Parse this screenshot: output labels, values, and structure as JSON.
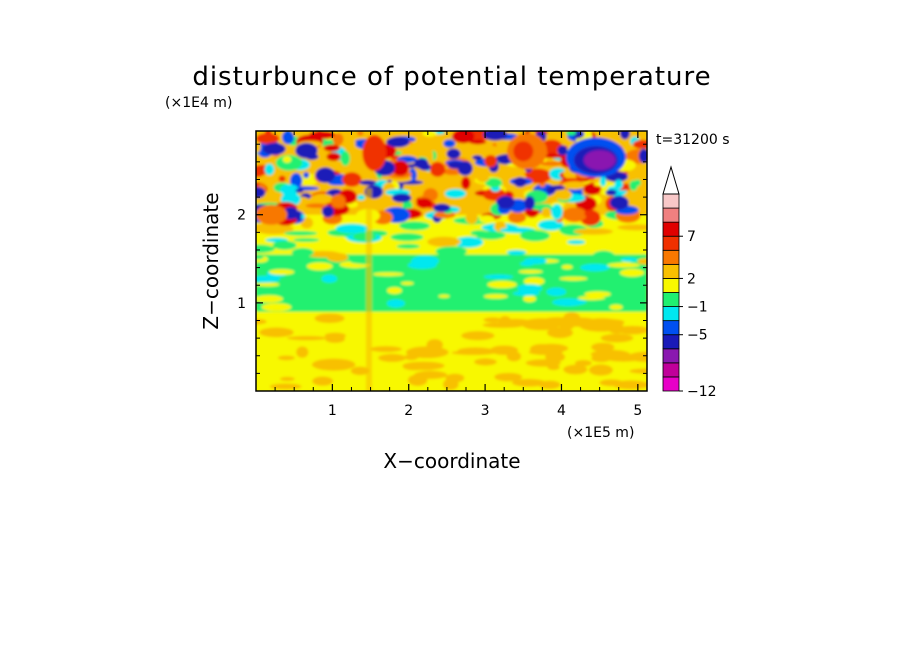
{
  "chart_data": {
    "type": "heatmap",
    "title": "disturbunce of potential temperature",
    "time_label": "t=31200 s",
    "xlabel": "X−coordinate",
    "ylabel": "Z−coordinate",
    "x_unit": "(×1E5 m)",
    "y_unit": "(×1E4 m)",
    "xlim": [
      0,
      5.12
    ],
    "ylim": [
      0,
      2.95
    ],
    "x_ticks": [
      {
        "value": 1,
        "label": "1"
      },
      {
        "value": 2,
        "label": "2"
      },
      {
        "value": 3,
        "label": "3"
      },
      {
        "value": 4,
        "label": "4"
      },
      {
        "value": 5,
        "label": "5"
      }
    ],
    "y_ticks": [
      {
        "value": 1,
        "label": "1"
      },
      {
        "value": 2,
        "label": "2"
      }
    ],
    "colorbar": {
      "levels": [
        {
          "color": "#e800c8"
        },
        {
          "color": "#c0009a"
        },
        {
          "color": "#8a18b0"
        },
        {
          "color": "#1a1ab8"
        },
        {
          "color": "#0050f0"
        },
        {
          "color": "#00e8f0"
        },
        {
          "color": "#20f070"
        },
        {
          "color": "#f8f800"
        },
        {
          "color": "#f8c000"
        },
        {
          "color": "#f87800"
        },
        {
          "color": "#f03000"
        },
        {
          "color": "#e00000"
        },
        {
          "color": "#f08080"
        },
        {
          "color": "#f8c8c8"
        }
      ],
      "labels": [
        {
          "value": 7,
          "label": "7",
          "boundary": 11
        },
        {
          "value": 2,
          "label": "2",
          "boundary": 8
        },
        {
          "value": -1,
          "label": "−1",
          "boundary": 6
        },
        {
          "value": -5,
          "label": "−5",
          "boundary": 4
        },
        {
          "value": -12,
          "label": "−12",
          "boundary": 0
        }
      ],
      "extend": "max"
    },
    "regions": [
      {
        "z_range": [
          0.0,
          0.9
        ],
        "value": 2.5,
        "description_level": "yellow-orange"
      },
      {
        "z_range": [
          0.9,
          1.55
        ],
        "value": 0.5,
        "description_level": "green"
      },
      {
        "z_range": [
          1.55,
          2.0
        ],
        "value": 2.5,
        "description_level": "yellow"
      },
      {
        "z_range": [
          2.0,
          2.95
        ],
        "value": -1,
        "description_level": "mixed"
      }
    ]
  }
}
